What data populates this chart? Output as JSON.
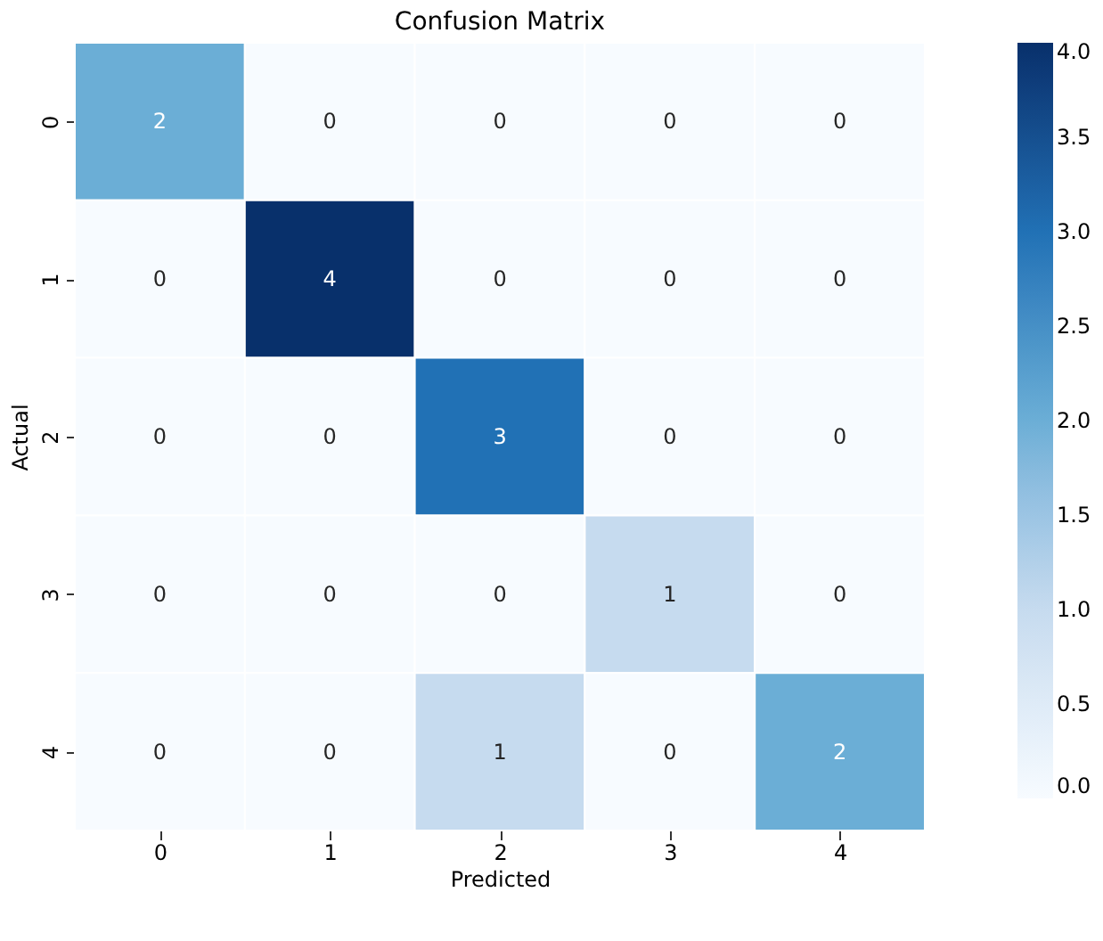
{
  "chart_data": {
    "type": "heatmap",
    "title": "Confusion Matrix",
    "xlabel": "Predicted",
    "ylabel": "Actual",
    "categories": [
      "0",
      "1",
      "2",
      "3",
      "4"
    ],
    "y_categories": [
      "0",
      "1",
      "2",
      "3",
      "4"
    ],
    "cells": [
      [
        2,
        0,
        0,
        0,
        0
      ],
      [
        0,
        4,
        0,
        0,
        0
      ],
      [
        0,
        0,
        3,
        0,
        0
      ],
      [
        0,
        0,
        0,
        1,
        0
      ],
      [
        0,
        0,
        1,
        0,
        2
      ]
    ],
    "clim": [
      0,
      4
    ],
    "cticks": [
      {
        "value": 0,
        "label": "0.0"
      },
      0.5,
      {
        "value": 1,
        "label": "1.0"
      },
      1.5,
      {
        "value": 2,
        "label": "2.0"
      },
      2.5,
      {
        "value": 3,
        "label": "3.0"
      },
      3.5,
      {
        "value": 4,
        "label": "4.0"
      }
    ],
    "data_labels": true
  }
}
